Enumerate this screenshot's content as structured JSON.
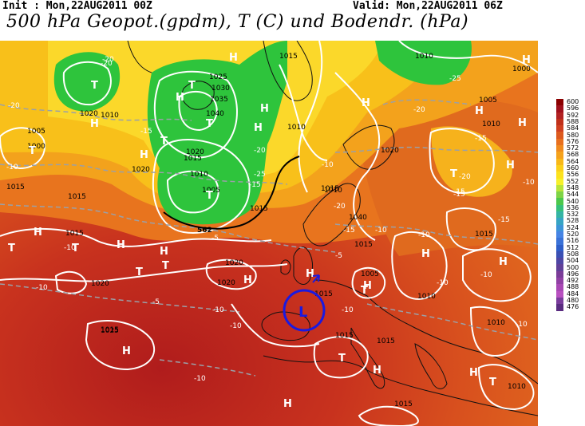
{
  "header": {
    "init_text": "Init : Mon,22AUG2011 00Z",
    "valid_text": "Valid: Mon,22AUG2011 06Z",
    "title": "500 hPa Geopot.(gpdm), T (C) und Bodendr. (hPa)"
  },
  "legend": {
    "values": [
      "600",
      "596",
      "592",
      "588",
      "584",
      "580",
      "576",
      "572",
      "568",
      "564",
      "560",
      "556",
      "552",
      "548",
      "544",
      "540",
      "536",
      "532",
      "528",
      "524",
      "520",
      "516",
      "512",
      "508",
      "504",
      "500",
      "496",
      "492",
      "488",
      "484",
      "480",
      "476"
    ],
    "colors": [
      "#8b0000",
      "#a0101c",
      "#b22222",
      "#c0301a",
      "#d04020",
      "#dd5a1e",
      "#e8701e",
      "#f08a1e",
      "#f5a21c",
      "#f8b818",
      "#fbd01a",
      "#fce21e",
      "#f6f02a",
      "#b8e43a",
      "#7ed446",
      "#4cc84c",
      "#36c07a",
      "#34b4a4",
      "#36a4c4",
      "#3c94d8",
      "#4684e4",
      "#3a72d8",
      "#2e5ec8",
      "#3a50b4",
      "#4e46a4",
      "#604098",
      "#7a3c98",
      "#9040a4",
      "#a848b4",
      "#b850c0",
      "#7a3c9c",
      "#5a2c80"
    ]
  },
  "map_labels": {
    "pressure_values": [
      "1015",
      "1010",
      "1025",
      "1030",
      "1035",
      "1040",
      "1020",
      "1015",
      "1010",
      "1005",
      "1015",
      "1020",
      "1000",
      "1005",
      "1010",
      "1015",
      "1020",
      "1010",
      "1015",
      "1020",
      "1015",
      "1025",
      "1015",
      "1010",
      "1015",
      "1020",
      "1015",
      "1015",
      "1010",
      "1010",
      "1010",
      "1015",
      "1040",
      "1020",
      "1020",
      "1015",
      "1015",
      "1010",
      "1005",
      "1000",
      "1005",
      "1015"
    ],
    "temperature_values": [
      "-20",
      "-20",
      "-15",
      "-10",
      "-10",
      "-15",
      "-20",
      "-25",
      "-20",
      "-10",
      "-5",
      "-10",
      "-10",
      "-5",
      "-10",
      "-10",
      "-10",
      "-15",
      "-20",
      "-15",
      "-20",
      "-25",
      "-15",
      "-15",
      "-10",
      "-10",
      "-10",
      "-20",
      "-15",
      "-10",
      "-10",
      "-5",
      "-10"
    ],
    "contour_562": "562",
    "highs": [
      "H",
      "H",
      "H",
      "H",
      "H",
      "H",
      "H",
      "H",
      "H",
      "H",
      "H",
      "H",
      "H",
      "H",
      "H",
      "H",
      "H",
      "H",
      "H",
      "H",
      "H",
      "H",
      "H"
    ],
    "lows": [
      "T",
      "T",
      "T",
      "T",
      "T",
      "T",
      "T",
      "T",
      "T",
      "T",
      "T",
      "T",
      "T",
      "T"
    ],
    "circle_marker": "L"
  }
}
